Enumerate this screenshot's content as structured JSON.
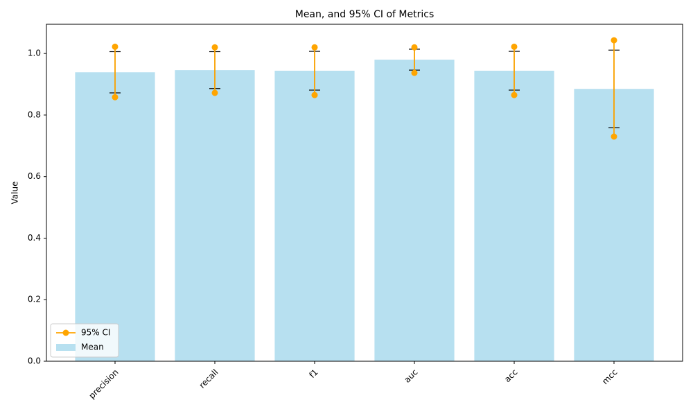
{
  "chart_data": {
    "type": "bar",
    "title": "Mean, and 95% CI of Metrics",
    "y_label": "Value",
    "categories": [
      "precision",
      "recall",
      "f1",
      "auc",
      "acc",
      "mcc"
    ],
    "series": [
      {
        "name": "Mean",
        "color": "#b7e0f0",
        "values": [
          0.939,
          0.946,
          0.944,
          0.98,
          0.944,
          0.885
        ],
        "errors": [
          0.067,
          0.06,
          0.063,
          0.034,
          0.063,
          0.126
        ]
      },
      {
        "name": "95% CI",
        "color": "#ffa500",
        "lower": [
          0.858,
          0.872,
          0.865,
          0.937,
          0.865,
          0.73
        ],
        "upper": [
          1.022,
          1.02,
          1.02,
          1.02,
          1.022,
          1.043
        ]
      }
    ],
    "ylim": [
      0,
      1.095
    ],
    "yticks": [
      {
        "value": 0,
        "label": "0.0"
      },
      {
        "value": 0.2,
        "label": "0.2"
      },
      {
        "value": 0.4,
        "label": "0.4"
      },
      {
        "value": 0.6,
        "label": "0.6"
      },
      {
        "value": 0.8,
        "label": "0.8"
      },
      {
        "value": 1,
        "label": "1.0"
      }
    ],
    "legend": "lower left"
  }
}
